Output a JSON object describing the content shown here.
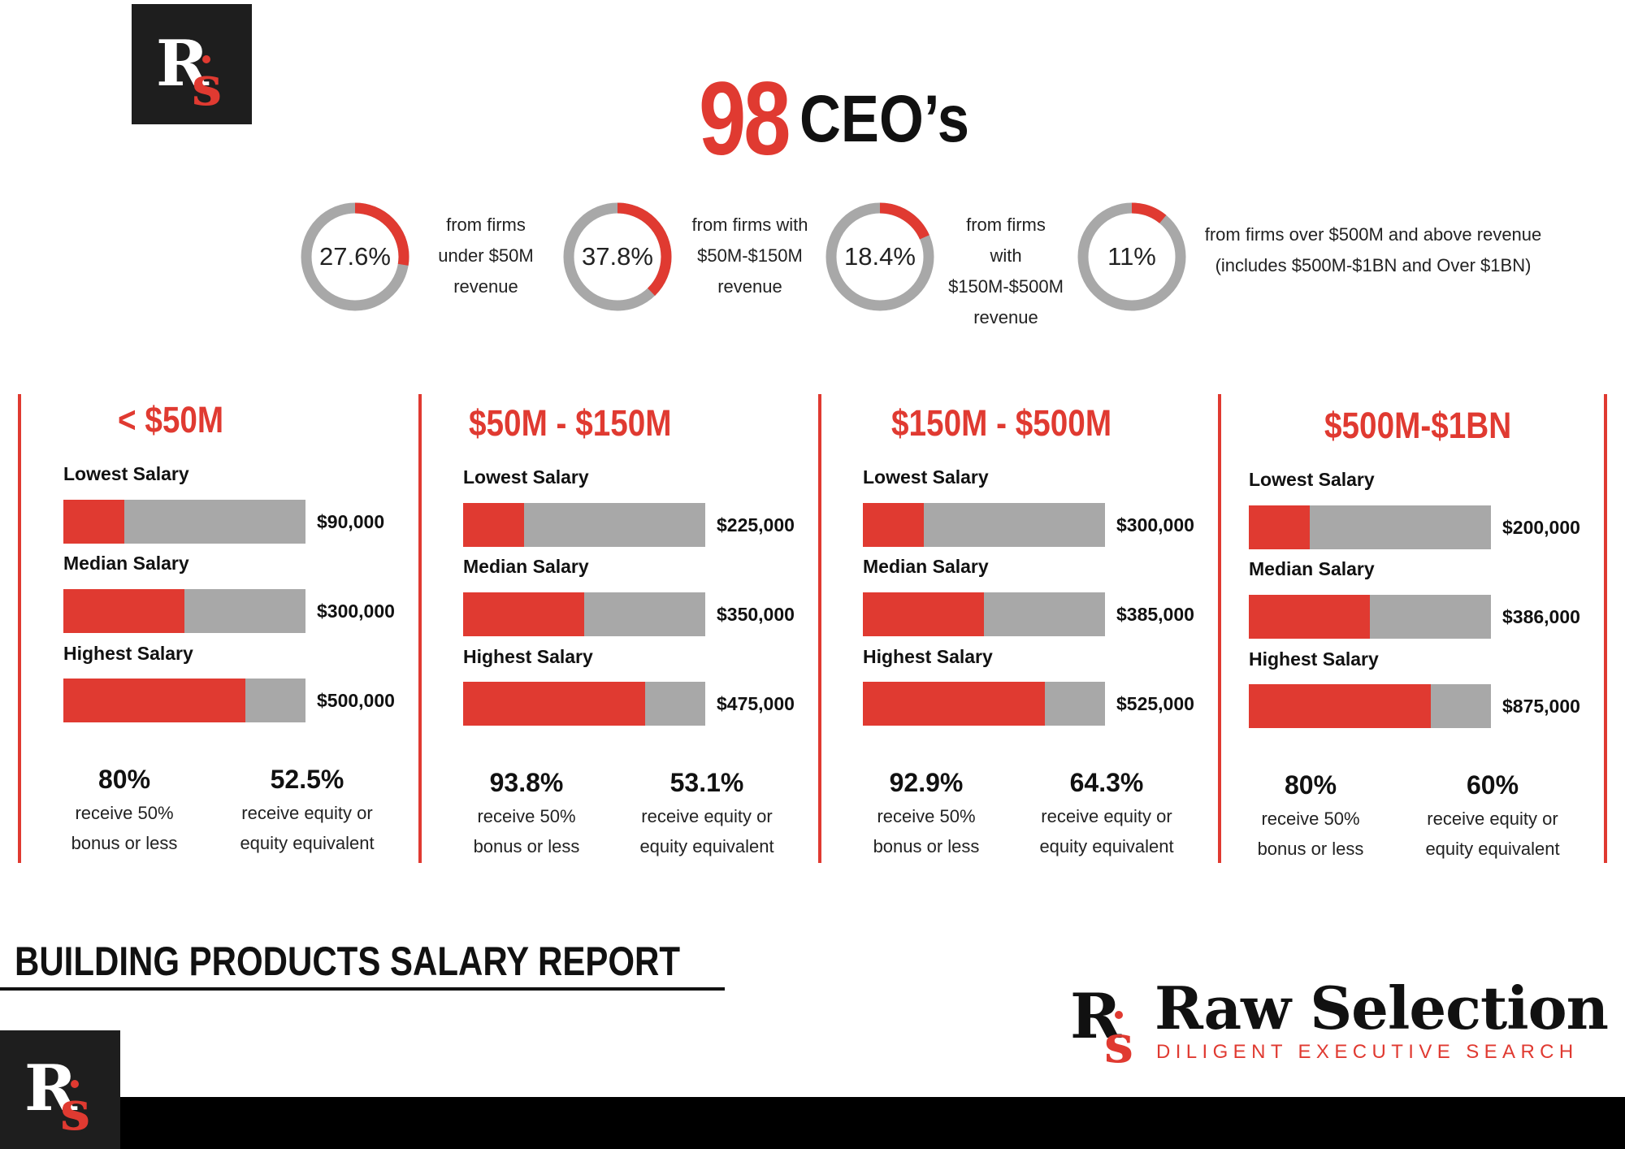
{
  "brand": {
    "name": "Raw Selection",
    "tagline": "DILIGENT EXECUTIVE SEARCH",
    "monogram": "Rs"
  },
  "colors": {
    "accent": "#e03a31",
    "track": "#a8a8a8",
    "dark": "#1e1e1e"
  },
  "hero": {
    "number": "98",
    "label": "CEO’s"
  },
  "report_title": "BUILDING PRODUCTS SALARY REPORT",
  "chart_data": [
    {
      "type": "pie",
      "variant": "donut",
      "slices": [
        {
          "value": 27.6,
          "display": "27.6%",
          "caption": "from firms under $50M revenue",
          "caption_lines": [
            "from firms",
            "under $50M",
            "revenue"
          ]
        },
        {
          "value": 37.8,
          "display": "37.8%",
          "caption": "from firms with $50M-$150M revenue",
          "caption_lines": [
            "from firms with",
            "$50M-$150M",
            "revenue"
          ]
        },
        {
          "value": 18.4,
          "display": "18.4%",
          "caption": "from firms with $150M-$500M revenue",
          "caption_lines": [
            "from firms",
            "with",
            "$150M-$500M",
            "revenue"
          ]
        },
        {
          "value": 11,
          "display": "11%",
          "caption": "from firms over $500M and above revenue (includes $500M-$1BN and Over $1BN)",
          "caption_lines": [
            "from firms over $500M and above revenue",
            "(includes $500M-$1BN and Over $1BN)"
          ]
        }
      ]
    },
    {
      "type": "bar",
      "orientation": "horizontal",
      "title": "< $50M",
      "categories": [
        "Lowest Salary",
        "Median Salary",
        "Highest Salary"
      ],
      "values": [
        90000,
        300000,
        500000
      ],
      "value_labels": [
        "$90,000",
        "$300,000",
        "$500,000"
      ],
      "fill_fractions": [
        0.25,
        0.5,
        0.75
      ],
      "stats": [
        {
          "percent": "80%",
          "lines": [
            "receive 50%",
            "bonus or less"
          ]
        },
        {
          "percent": "52.5%",
          "lines": [
            "receive equity or",
            "equity equivalent"
          ]
        }
      ]
    },
    {
      "type": "bar",
      "orientation": "horizontal",
      "title": "$50M - $150M",
      "categories": [
        "Lowest Salary",
        "Median Salary",
        "Highest Salary"
      ],
      "values": [
        225000,
        350000,
        475000
      ],
      "value_labels": [
        "$225,000",
        "$350,000",
        "$475,000"
      ],
      "fill_fractions": [
        0.25,
        0.5,
        0.75
      ],
      "stats": [
        {
          "percent": "93.8%",
          "lines": [
            "receive 50%",
            "bonus or less"
          ]
        },
        {
          "percent": "53.1%",
          "lines": [
            "receive equity or",
            "equity equivalent"
          ]
        }
      ]
    },
    {
      "type": "bar",
      "orientation": "horizontal",
      "title": "$150M - $500M",
      "categories": [
        "Lowest Salary",
        "Median Salary",
        "Highest Salary"
      ],
      "values": [
        300000,
        385000,
        525000
      ],
      "value_labels": [
        "$300,000",
        "$385,000",
        "$525,000"
      ],
      "fill_fractions": [
        0.25,
        0.5,
        0.75
      ],
      "stats": [
        {
          "percent": "92.9%",
          "lines": [
            "receive 50%",
            "bonus or less"
          ]
        },
        {
          "percent": "64.3%",
          "lines": [
            "receive equity or",
            "equity equivalent"
          ]
        }
      ]
    },
    {
      "type": "bar",
      "orientation": "horizontal",
      "title": "$500M-$1BN",
      "categories": [
        "Lowest Salary",
        "Median Salary",
        "Highest Salary"
      ],
      "values": [
        200000,
        386000,
        875000
      ],
      "value_labels": [
        "$200,000",
        "$386,000",
        "$875,000"
      ],
      "fill_fractions": [
        0.25,
        0.5,
        0.75
      ],
      "stats": [
        {
          "percent": "80%",
          "lines": [
            "receive 50%",
            "bonus or less"
          ]
        },
        {
          "percent": "60%",
          "lines": [
            "receive equity or",
            "equity equivalent"
          ]
        }
      ]
    }
  ]
}
